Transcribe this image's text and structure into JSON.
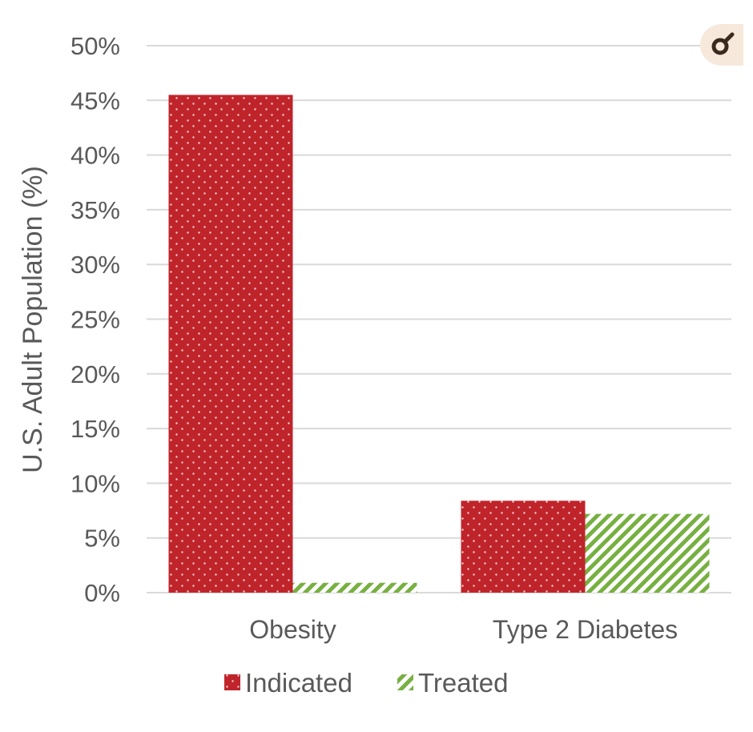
{
  "chart_data": {
    "type": "bar",
    "categories": [
      "Obesity",
      "Type 2 Diabetes"
    ],
    "series": [
      {
        "name": "Indicated",
        "values": [
          45.5,
          8.4
        ],
        "color": "#c0242b",
        "pattern": "dots"
      },
      {
        "name": "Treated",
        "values": [
          0.9,
          7.2
        ],
        "color": "#77b041",
        "pattern": "diagonal-stripes"
      }
    ],
    "title": "",
    "xlabel": "",
    "ylabel": "U.S. Adult Population (%)",
    "ylim": [
      0,
      50
    ],
    "yticks": [
      "0%",
      "5%",
      "10%",
      "15%",
      "20%",
      "25%",
      "30%",
      "35%",
      "40%",
      "45%",
      "50%"
    ],
    "grid": true,
    "legend": "bottom-center"
  },
  "corner_icon": "magnifier-icon"
}
